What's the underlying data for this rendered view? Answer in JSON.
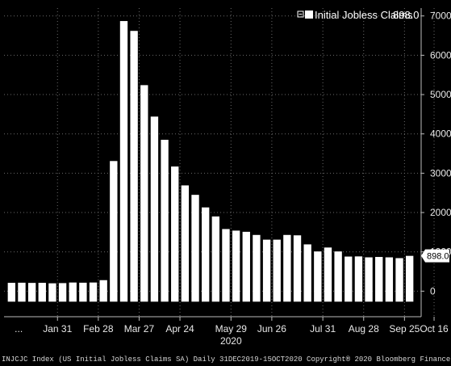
{
  "chart_data": {
    "type": "bar",
    "title": "",
    "xlabel": "",
    "ylabel": "",
    "ylim": [
      -650,
      7200
    ],
    "yticks": [
      0,
      1000,
      2000,
      3000,
      4000,
      5000,
      6000,
      7000
    ],
    "grid": true,
    "legend": {
      "position": "top-right",
      "label": "Initial Jobless Claims",
      "value_label": "898.0"
    },
    "last_value_label": "898.0",
    "x_tick_labels": [
      {
        "label": "...",
        "bar_index": 0.7
      },
      {
        "label": "Jan 31",
        "bar_index": 4.5
      },
      {
        "label": "Feb 28",
        "bar_index": 8.5
      },
      {
        "label": "Mar 27",
        "bar_index": 12.5
      },
      {
        "label": "Apr 24",
        "bar_index": 16.5
      },
      {
        "label": "May 29",
        "bar_index": 21.5
      },
      {
        "label": "Jun 26",
        "bar_index": 25.5
      },
      {
        "label": "Jul 31",
        "bar_index": 30.5
      },
      {
        "label": "Aug 28",
        "bar_index": 34.5
      },
      {
        "label": "Sep 25",
        "bar_index": 38.5
      },
      {
        "label": "Oct 16",
        "bar_index": 41.4
      }
    ],
    "year_label": {
      "label": "2020",
      "bar_index": 21.5
    },
    "series": [
      {
        "values": [
          212,
          215,
          210,
          212,
          200,
          205,
          220,
          215,
          220,
          280,
          3310,
          6870,
          6620,
          5240,
          4440,
          3850,
          3170,
          2690,
          2450,
          2130,
          1900,
          1580,
          1540,
          1510,
          1430,
          1310,
          1310,
          1430,
          1420,
          1190,
          1010,
          1110,
          1010,
          880,
          884,
          860,
          870,
          860,
          840,
          898
        ]
      }
    ],
    "footer": "INJCJC Index (US Initial Jobless Claims SA)  Daily 31DEC2019-15OCT2020 Copyright® 2020 Bloomberg Finance L.P. 15-Oct-2020 13:30:50",
    "colors": {
      "background": "#000000",
      "bar": "#ffffff",
      "grid": "#6a6a6a",
      "value_box_bg": "#ffffff",
      "value_box_text": "#000000"
    }
  }
}
